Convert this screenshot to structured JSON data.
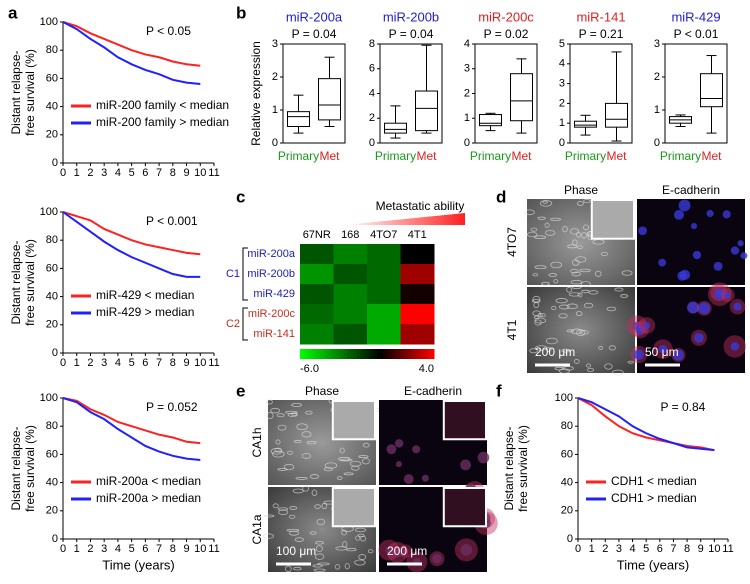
{
  "panel_labels": [
    "a",
    "b",
    "c",
    "d",
    "e",
    "f"
  ],
  "chart_data": [
    {
      "type": "line",
      "ylabel": [
        "Distant relapse-",
        "free survival (%)"
      ],
      "annotation": "P < 0.05",
      "x": [
        0,
        1,
        2,
        3,
        4,
        5,
        6,
        7,
        8,
        9,
        10
      ],
      "xlim": [
        0,
        11
      ],
      "xticks": [
        0,
        1,
        2,
        3,
        4,
        5,
        6,
        7,
        8,
        9,
        10,
        11
      ],
      "ylim": [
        0,
        100
      ],
      "yticks": [
        0,
        20,
        40,
        60,
        80,
        100
      ],
      "legend": "lower left",
      "series": [
        {
          "name": "miR-200 family < median",
          "color": "#ff2020",
          "values": [
            100,
            97,
            92,
            88,
            84,
            80,
            77,
            75,
            72,
            70,
            69
          ]
        },
        {
          "name": "miR-200 family > median",
          "color": "#2020ff",
          "values": [
            100,
            95,
            88,
            82,
            75,
            70,
            66,
            63,
            59,
            57,
            56
          ]
        }
      ]
    },
    {
      "type": "line",
      "ylabel": [
        "Distant relapse-",
        "free survival (%)"
      ],
      "annotation": "P < 0.001",
      "x": [
        0,
        1,
        2,
        3,
        4,
        5,
        6,
        7,
        8,
        9,
        10
      ],
      "xlim": [
        0,
        11
      ],
      "xticks": [
        0,
        1,
        2,
        3,
        4,
        5,
        6,
        7,
        8,
        9,
        10,
        11
      ],
      "ylim": [
        0,
        100
      ],
      "yticks": [
        0,
        20,
        40,
        60,
        80,
        100
      ],
      "legend": "lower left",
      "series": [
        {
          "name": "miR-429 < median",
          "color": "#ff2020",
          "values": [
            100,
            97,
            94,
            88,
            84,
            80,
            77,
            75,
            73,
            71,
            70
          ]
        },
        {
          "name": "miR-429 > median",
          "color": "#2020ff",
          "values": [
            100,
            93,
            86,
            79,
            73,
            68,
            64,
            60,
            56,
            54,
            54
          ]
        }
      ]
    },
    {
      "type": "line",
      "ylabel": [
        "Distant relapse-",
        "free survival (%)"
      ],
      "xlabel": "Time (years)",
      "annotation": "P = 0.052",
      "x": [
        0,
        1,
        2,
        3,
        4,
        5,
        6,
        7,
        8,
        9,
        10
      ],
      "xlim": [
        0,
        11
      ],
      "xticks": [
        0,
        1,
        2,
        3,
        4,
        5,
        6,
        7,
        8,
        9,
        10,
        11
      ],
      "ylim": [
        0,
        100
      ],
      "yticks": [
        0,
        20,
        40,
        60,
        80,
        100
      ],
      "legend": "lower left",
      "series": [
        {
          "name": "miR-200a < median",
          "color": "#ff2020",
          "values": [
            100,
            98,
            92,
            88,
            83,
            80,
            77,
            74,
            72,
            69,
            68
          ]
        },
        {
          "name": "miR-200a > median",
          "color": "#2020ff",
          "values": [
            100,
            97,
            90,
            85,
            78,
            72,
            66,
            62,
            59,
            57,
            56
          ]
        }
      ]
    },
    {
      "type": "box",
      "title": "miR-200a",
      "title_color": "#2020d0",
      "annotation": "P = 0.04",
      "ylabel": "Relative expression",
      "categories": [
        "Primary",
        "Met"
      ],
      "category_colors": [
        "#1a9a1a",
        "#e02020"
      ],
      "ylim": [
        0,
        3
      ],
      "yticks": [
        0,
        1,
        2,
        3
      ],
      "boxes": [
        {
          "whislo": 0.3,
          "q1": 0.5,
          "med": 0.8,
          "q3": 0.95,
          "whishi": 1.45
        },
        {
          "whislo": 0.5,
          "q1": 0.7,
          "med": 1.15,
          "q3": 1.95,
          "whishi": 2.6
        }
      ]
    },
    {
      "type": "box",
      "title": "miR-200b",
      "title_color": "#2020d0",
      "annotation": "P = 0.04",
      "categories": [
        "Primary",
        "Met"
      ],
      "category_colors": [
        "#1a9a1a",
        "#e02020"
      ],
      "ylim": [
        0,
        8
      ],
      "yticks": [
        0,
        2,
        4,
        6,
        8
      ],
      "boxes": [
        {
          "whislo": 0.4,
          "q1": 0.8,
          "med": 1.1,
          "q3": 1.6,
          "whishi": 3.0
        },
        {
          "whislo": 0.8,
          "q1": 1.0,
          "med": 2.8,
          "q3": 4.2,
          "whishi": 7.9
        }
      ]
    },
    {
      "type": "box",
      "title": "miR-200c",
      "title_color": "#e02020",
      "annotation": "P = 0.02",
      "categories": [
        "Primary",
        "Met"
      ],
      "category_colors": [
        "#1a9a1a",
        "#e02020"
      ],
      "ylim": [
        0,
        4
      ],
      "yticks": [
        0,
        1,
        2,
        3,
        4
      ],
      "boxes": [
        {
          "whislo": 0.5,
          "q1": 0.7,
          "med": 0.8,
          "q3": 1.15,
          "whishi": 1.2
        },
        {
          "whislo": 0.4,
          "q1": 0.9,
          "med": 1.7,
          "q3": 2.8,
          "whishi": 3.4
        }
      ]
    },
    {
      "type": "box",
      "title": "miR-141",
      "title_color": "#e02020",
      "annotation": "P = 0.21",
      "categories": [
        "Primary",
        "Met"
      ],
      "category_colors": [
        "#1a9a1a",
        "#e02020"
      ],
      "ylim": [
        0,
        5
      ],
      "yticks": [
        0,
        1,
        2,
        3,
        4,
        5
      ],
      "boxes": [
        {
          "whislo": 0.4,
          "q1": 0.8,
          "med": 0.9,
          "q3": 1.1,
          "whishi": 1.4
        },
        {
          "whislo": 0.1,
          "q1": 0.8,
          "med": 1.2,
          "q3": 2.0,
          "whishi": 4.6
        }
      ]
    },
    {
      "type": "box",
      "title": "miR-429",
      "title_color": "#2020d0",
      "annotation": "P < 0.01",
      "categories": [
        "Primary",
        "Met"
      ],
      "category_colors": [
        "#1a9a1a",
        "#e02020"
      ],
      "ylim": [
        0,
        3
      ],
      "yticks": [
        0,
        1,
        2,
        3
      ],
      "boxes": [
        {
          "whislo": 0.5,
          "q1": 0.6,
          "med": 0.7,
          "q3": 0.8,
          "whishi": 0.85
        },
        {
          "whislo": 0.3,
          "q1": 1.1,
          "med": 1.35,
          "q3": 2.1,
          "whishi": 2.65
        }
      ]
    },
    {
      "type": "heatmap",
      "title": "Metastatic ability",
      "x_categories": [
        "67NR",
        "168",
        "4TO7",
        "4T1"
      ],
      "row_groups": [
        {
          "name": "C1",
          "color": "#2020b0",
          "rows": [
            "miR-200a",
            "miR-200b",
            "miR-429"
          ]
        },
        {
          "name": "C2",
          "color": "#c03020",
          "rows": [
            "miR-200c",
            "miR-141"
          ]
        }
      ],
      "values": [
        [
          -2,
          -3,
          -2.5,
          0
        ],
        [
          -3.5,
          -2,
          -2.5,
          2.5
        ],
        [
          -2,
          -3,
          -2.5,
          0.3
        ],
        [
          -2.5,
          -3,
          -4,
          4
        ],
        [
          -3,
          -2,
          -4,
          2.5
        ]
      ],
      "zlim": [
        -6,
        4
      ],
      "zticks": [
        {
          "value": -6,
          "label": "-6.0"
        },
        {
          "value": 4,
          "label": "4.0"
        }
      ],
      "colors": [
        "#00ff00",
        "#000000",
        "#ff0000"
      ]
    },
    {
      "type": "line",
      "ylabel": [
        "Distant relapse-",
        "free survival (%)"
      ],
      "xlabel": "Time (years)",
      "annotation": "P = 0.84",
      "x": [
        0,
        1,
        2,
        3,
        4,
        5,
        6,
        7,
        8,
        9,
        10
      ],
      "xlim": [
        0,
        11
      ],
      "xticks": [
        0,
        1,
        2,
        3,
        4,
        5,
        6,
        7,
        8,
        9,
        10,
        11
      ],
      "ylim": [
        0,
        100
      ],
      "yticks": [
        0,
        20,
        40,
        60,
        80,
        100
      ],
      "legend": "lower left",
      "series": [
        {
          "name": "CDH1 < median",
          "color": "#ff2020",
          "values": [
            100,
            95,
            87,
            80,
            75,
            72,
            70,
            68,
            66,
            65,
            63
          ]
        },
        {
          "name": "CDH1 > median",
          "color": "#2020ff",
          "values": [
            100,
            97,
            92,
            87,
            80,
            75,
            71,
            68,
            65,
            64,
            63
          ]
        }
      ]
    }
  ],
  "panel_d": {
    "columns": [
      "Phase",
      "E-cadherin"
    ],
    "rows": [
      "4TO7",
      "4T1"
    ],
    "scale_bars": [
      "200 μm",
      "50 μm"
    ]
  },
  "panel_e": {
    "columns": [
      "Phase",
      "E-cadherin"
    ],
    "rows": [
      "CA1h",
      "CA1a"
    ],
    "scale_bars": [
      "100 μm",
      "200 μm"
    ]
  }
}
